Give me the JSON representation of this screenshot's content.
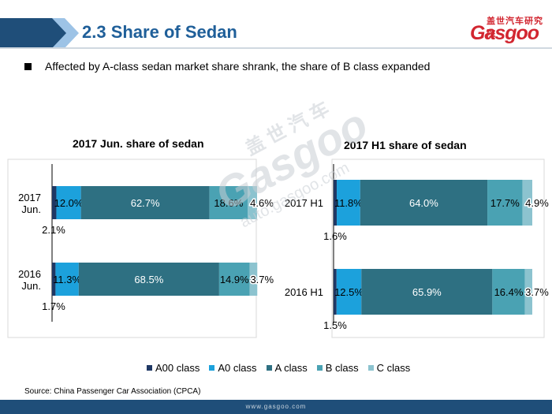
{
  "header": {
    "title": "2.3 Share of Sedan",
    "logo_cn": "盖世汽车研究院",
    "logo_text": "Gasgoo"
  },
  "bullet": "Affected by A-class sedan market share shrank, the share of B class expanded",
  "colors": {
    "header": "#1f4e79",
    "A00 class": "#1f3864",
    "A0 class": "#1ca1dc",
    "A class": "#2e7082",
    "B class": "#4aa2b3",
    "C class": "#8cc3cf"
  },
  "chart_data": [
    {
      "type": "bar",
      "orientation": "horizontal",
      "stacked": true,
      "title": "2017 Jun. share of sedan",
      "categories": [
        "2017\nJun.",
        "2016\nJun."
      ],
      "series": [
        {
          "name": "A00 class",
          "values": [
            2.1,
            1.7
          ],
          "labels": [
            "2.1%",
            "1.7%"
          ]
        },
        {
          "name": "A0 class",
          "values": [
            12.0,
            11.3
          ],
          "labels": [
            "12.0%",
            "11.3%"
          ]
        },
        {
          "name": "A class",
          "values": [
            62.7,
            68.5
          ],
          "labels": [
            "62.7%",
            "68.5%"
          ]
        },
        {
          "name": "B class",
          "values": [
            18.6,
            14.9
          ],
          "labels": [
            "18.6%",
            "14.9%"
          ]
        },
        {
          "name": "C class",
          "values": [
            4.6,
            3.7
          ],
          "labels": [
            "4.6%",
            "3.7%"
          ]
        }
      ],
      "xlim": [
        0,
        100
      ],
      "grid": false
    },
    {
      "type": "bar",
      "orientation": "horizontal",
      "stacked": true,
      "title": "2017 H1 share of sedan",
      "categories": [
        "2017 H1",
        "2016 H1"
      ],
      "series": [
        {
          "name": "A00 class",
          "values": [
            1.6,
            1.5
          ],
          "labels": [
            "1.6%",
            "1.5%"
          ]
        },
        {
          "name": "A0 class",
          "values": [
            11.8,
            12.5
          ],
          "labels": [
            "11.8%",
            "12.5%"
          ]
        },
        {
          "name": "A class",
          "values": [
            64.0,
            65.9
          ],
          "labels": [
            "64.0%",
            "65.9%"
          ]
        },
        {
          "name": "B class",
          "values": [
            17.7,
            16.4
          ],
          "labels": [
            "17.7%",
            "16.4%"
          ]
        },
        {
          "name": "C class",
          "values": [
            4.9,
            3.7
          ],
          "labels": [
            "4.9%",
            "3.7%"
          ]
        }
      ],
      "xlim": [
        0,
        100
      ],
      "grid": false
    }
  ],
  "legend": {
    "position": "bottom",
    "items": [
      "A00 class",
      "A0 class",
      "A class",
      "B class",
      "C class"
    ]
  },
  "source": "Source: China Passenger Car Association (CPCA)",
  "footer_url": "www.gasgoo.com",
  "watermark": {
    "cn": "盖 世 汽 车",
    "logo": "Gasgoo",
    "url": "auto.gasgoo.com"
  }
}
